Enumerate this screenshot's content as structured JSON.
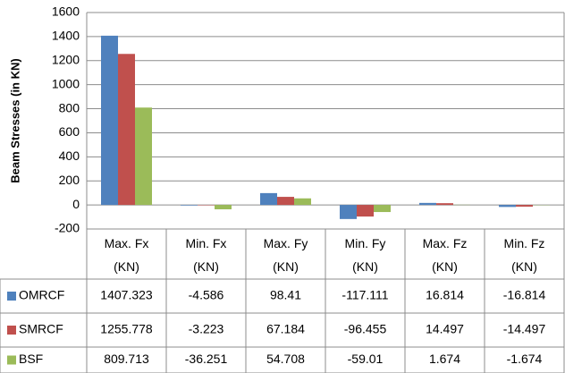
{
  "chart_data": {
    "type": "bar",
    "y_label": "Beam Stresses (in KN)",
    "categories": [
      "Max. Fx (KN)",
      "Min. Fx (KN)",
      "Max. Fy (KN)",
      "Min. Fy (KN)",
      "Max. Fz (KN)",
      "Min. Fz (KN)"
    ],
    "series": [
      {
        "name": "OMRCF",
        "color": "#4f81bd",
        "values": [
          1407.323,
          -4.586,
          98.41,
          -117.111,
          16.814,
          -16.814
        ]
      },
      {
        "name": "SMRCF",
        "color": "#c0504d",
        "values": [
          1255.778,
          -3.223,
          67.184,
          -96.455,
          14.497,
          -14.497
        ]
      },
      {
        "name": "BSF",
        "color": "#9bbb59",
        "values": [
          809.713,
          -36.251,
          54.708,
          -59.01,
          1.674,
          -1.674
        ]
      }
    ],
    "ylim": [
      -200,
      1600
    ],
    "yticks": [
      -200,
      0,
      200,
      400,
      600,
      800,
      1000,
      1200,
      1400,
      1600
    ],
    "grid": true
  }
}
